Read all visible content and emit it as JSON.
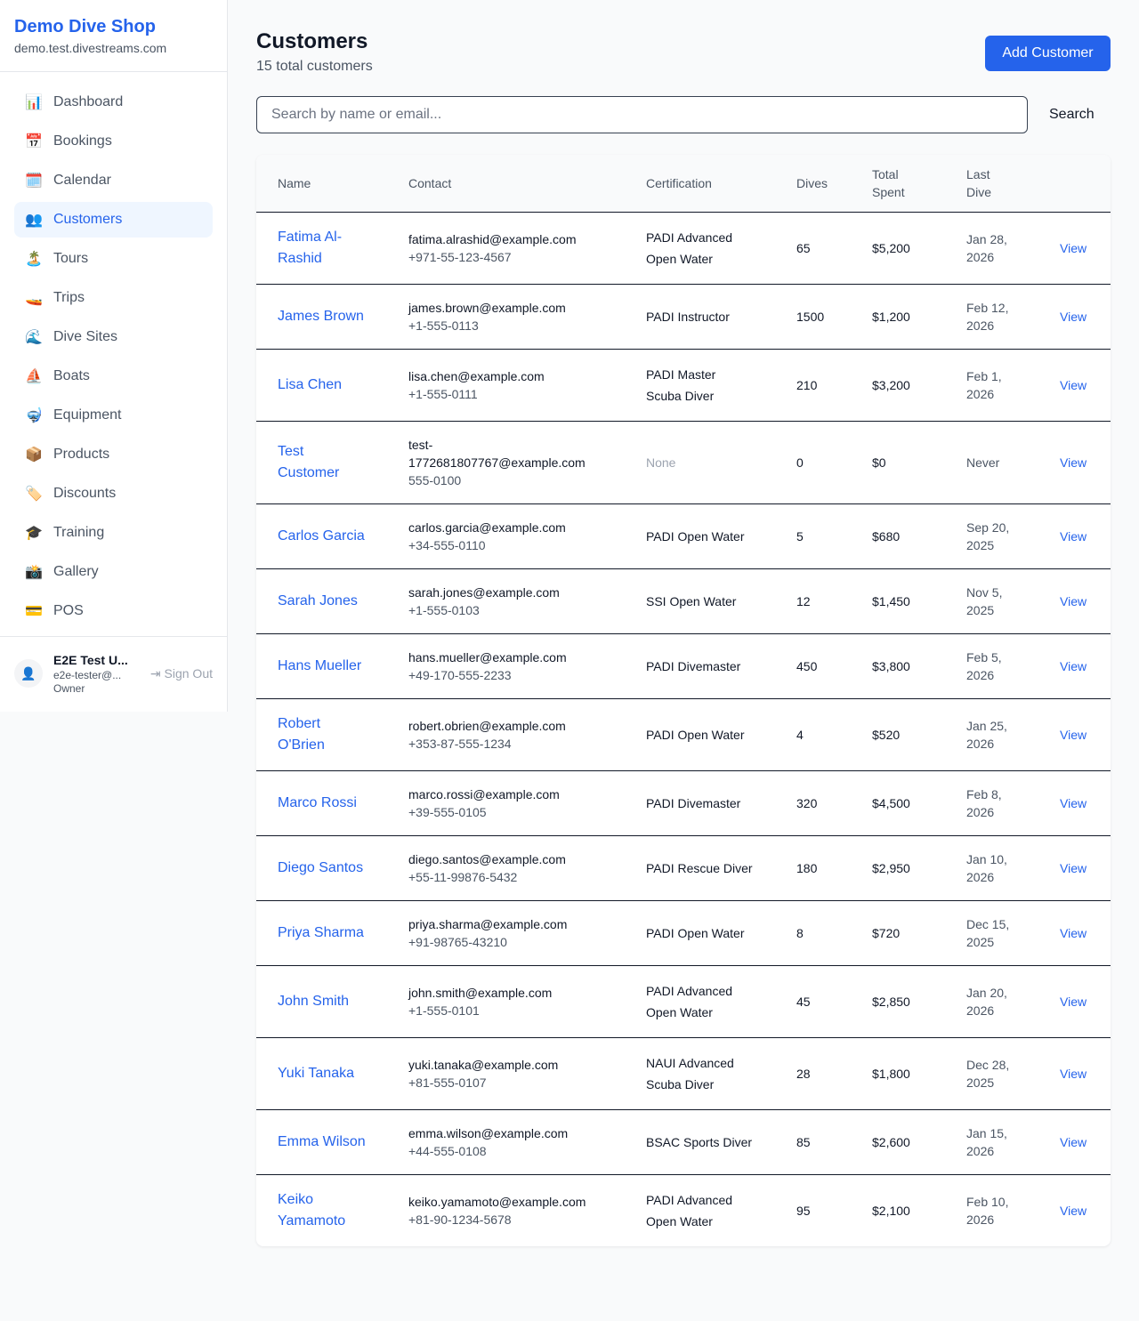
{
  "brand": {
    "name": "Demo Dive Shop",
    "domain": "demo.test.divestreams.com"
  },
  "nav": [
    {
      "label": "Dashboard",
      "icon": "📊"
    },
    {
      "label": "Bookings",
      "icon": "📅"
    },
    {
      "label": "Calendar",
      "icon": "🗓️"
    },
    {
      "label": "Customers",
      "icon": "👥",
      "active": true
    },
    {
      "label": "Tours",
      "icon": "🏝️"
    },
    {
      "label": "Trips",
      "icon": "🚤"
    },
    {
      "label": "Dive Sites",
      "icon": "🌊"
    },
    {
      "label": "Boats",
      "icon": "⛵"
    },
    {
      "label": "Equipment",
      "icon": "🤿"
    },
    {
      "label": "Products",
      "icon": "📦"
    },
    {
      "label": "Discounts",
      "icon": "🏷️"
    },
    {
      "label": "Training",
      "icon": "🎓"
    },
    {
      "label": "Gallery",
      "icon": "📸"
    },
    {
      "label": "POS",
      "icon": "💳"
    }
  ],
  "user": {
    "name": "E2E Test U...",
    "email": "e2e-tester@...",
    "role": "Owner",
    "sign_out": "Sign Out"
  },
  "header": {
    "title": "Customers",
    "subtitle": "15 total customers",
    "add_button": "Add Customer"
  },
  "search": {
    "placeholder": "Search by name or email...",
    "button": "Search",
    "value": ""
  },
  "table": {
    "columns": [
      "Name",
      "Contact",
      "Certification",
      "Dives",
      "Total Spent",
      "Last Dive",
      ""
    ],
    "action_label": "View",
    "rows": [
      [
        "Fatima Al-Rashid",
        "fatima.alrashid@example.com",
        "+971-55-123-4567",
        "PADI Advanced Open Water",
        "65",
        "$5,200",
        "Jan 28, 2026"
      ],
      [
        "James Brown",
        "james.brown@example.com",
        "+1-555-0113",
        "PADI Instructor",
        "1500",
        "$1,200",
        "Feb 12, 2026"
      ],
      [
        "Lisa Chen",
        "lisa.chen@example.com",
        "+1-555-0111",
        "PADI Master Scuba Diver",
        "210",
        "$3,200",
        "Feb 1, 2026"
      ],
      [
        "Test Customer",
        "test-1772681807767@example.com",
        "555-0100",
        "None",
        "0",
        "$0",
        "Never"
      ],
      [
        "Carlos Garcia",
        "carlos.garcia@example.com",
        "+34-555-0110",
        "PADI Open Water",
        "5",
        "$680",
        "Sep 20, 2025"
      ],
      [
        "Sarah Jones",
        "sarah.jones@example.com",
        "+1-555-0103",
        "SSI Open Water",
        "12",
        "$1,450",
        "Nov 5, 2025"
      ],
      [
        "Hans Mueller",
        "hans.mueller@example.com",
        "+49-170-555-2233",
        "PADI Divemaster",
        "450",
        "$3,800",
        "Feb 5, 2026"
      ],
      [
        "Robert O'Brien",
        "robert.obrien@example.com",
        "+353-87-555-1234",
        "PADI Open Water",
        "4",
        "$520",
        "Jan 25, 2026"
      ],
      [
        "Marco Rossi",
        "marco.rossi@example.com",
        "+39-555-0105",
        "PADI Divemaster",
        "320",
        "$4,500",
        "Feb 8, 2026"
      ],
      [
        "Diego Santos",
        "diego.santos@example.com",
        "+55-11-99876-5432",
        "PADI Rescue Diver",
        "180",
        "$2,950",
        "Jan 10, 2026"
      ],
      [
        "Priya Sharma",
        "priya.sharma@example.com",
        "+91-98765-43210",
        "PADI Open Water",
        "8",
        "$720",
        "Dec 15, 2025"
      ],
      [
        "John Smith",
        "john.smith@example.com",
        "+1-555-0101",
        "PADI Advanced Open Water",
        "45",
        "$2,850",
        "Jan 20, 2026"
      ],
      [
        "Yuki Tanaka",
        "yuki.tanaka@example.com",
        "+81-555-0107",
        "NAUI Advanced Scuba Diver",
        "28",
        "$1,800",
        "Dec 28, 2025"
      ],
      [
        "Emma Wilson",
        "emma.wilson@example.com",
        "+44-555-0108",
        "BSAC Sports Diver",
        "85",
        "$2,600",
        "Jan 15, 2026"
      ],
      [
        "Keiko Yamamoto",
        "keiko.yamamoto@example.com",
        "+81-90-1234-5678",
        "PADI Advanced Open Water",
        "95",
        "$2,100",
        "Feb 10, 2026"
      ]
    ]
  }
}
